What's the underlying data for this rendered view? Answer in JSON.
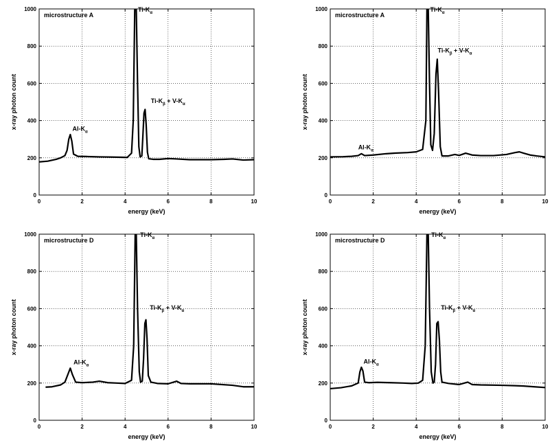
{
  "chart_data": [
    {
      "type": "line",
      "title": "microstructure A",
      "xlabel": "energy (keV)",
      "ylabel": "x-ray photon count",
      "xlim": [
        0,
        10
      ],
      "ylim": [
        0,
        1000
      ],
      "xticks": [
        "0",
        "2",
        "4",
        "6",
        "8",
        "10"
      ],
      "yticks": [
        "0",
        "200",
        "400",
        "600",
        "800",
        "1000"
      ],
      "grid": true,
      "series": [
        {
          "x": [
            0,
            0.4,
            0.8,
            1.0,
            1.2,
            1.3,
            1.38,
            1.45,
            1.52,
            1.6,
            1.8,
            2.2,
            2.8,
            3.4,
            3.8,
            4.1,
            4.3,
            4.38,
            4.45,
            4.52,
            4.58,
            4.64,
            4.7,
            4.78,
            4.82,
            4.88,
            4.93,
            4.98,
            5.04,
            5.1,
            5.3,
            5.6,
            6.0,
            6.4,
            7.0,
            8.0,
            8.6,
            9.0,
            9.5,
            10
          ],
          "values": [
            178,
            182,
            192,
            200,
            212,
            240,
            300,
            325,
            290,
            220,
            208,
            207,
            205,
            204,
            203,
            202,
            225,
            400,
            1000,
            1000,
            600,
            260,
            205,
            210,
            300,
            440,
            460,
            380,
            230,
            195,
            192,
            192,
            196,
            194,
            190,
            190,
            192,
            194,
            188,
            190
          ]
        }
      ],
      "annotations": [
        {
          "base": "Ti-K",
          "sub": "α",
          "rest": "",
          "sub2": "",
          "x": 4.6,
          "y": 985
        },
        {
          "base": "Ti-K",
          "sub": "β",
          "rest": " + V-K",
          "sub2": "α",
          "x": 5.2,
          "y": 495
        },
        {
          "base": "Al-K",
          "sub": "α",
          "rest": "",
          "sub2": "",
          "x": 1.55,
          "y": 345
        }
      ]
    },
    {
      "type": "line",
      "title": "microstructure A",
      "xlabel": "energy (keV)",
      "ylabel": "x-ray photon count",
      "xlim": [
        0,
        10
      ],
      "ylim": [
        0,
        1000
      ],
      "xticks": [
        "0",
        "2",
        "4",
        "6",
        "8",
        "10"
      ],
      "yticks": [
        "0",
        "200",
        "400",
        "600",
        "800",
        "1000"
      ],
      "grid": true,
      "series": [
        {
          "x": [
            0,
            0.6,
            1.0,
            1.3,
            1.45,
            1.6,
            2.0,
            2.6,
            3.0,
            3.6,
            4.0,
            4.3,
            4.45,
            4.5,
            4.56,
            4.62,
            4.68,
            4.76,
            4.84,
            4.92,
            4.98,
            5.04,
            5.12,
            5.2,
            5.5,
            5.8,
            6.0,
            6.3,
            6.6,
            7.0,
            7.6,
            8.2,
            8.6,
            8.8,
            9.0,
            9.3,
            9.6,
            10
          ],
          "values": [
            205,
            206,
            208,
            212,
            222,
            212,
            215,
            222,
            225,
            228,
            232,
            245,
            400,
            1000,
            1000,
            600,
            270,
            240,
            330,
            650,
            730,
            560,
            260,
            210,
            210,
            218,
            213,
            225,
            215,
            212,
            212,
            218,
            228,
            232,
            225,
            215,
            210,
            205
          ]
        }
      ],
      "annotations": [
        {
          "base": "Ti-K",
          "sub": "α",
          "rest": "",
          "sub2": "",
          "x": 4.65,
          "y": 985
        },
        {
          "base": "Ti-K",
          "sub": "β",
          "rest": " + V-K",
          "sub2": "α",
          "x": 5.0,
          "y": 765
        },
        {
          "base": "Al-K",
          "sub": "α",
          "rest": "",
          "sub2": "",
          "x": 1.3,
          "y": 245
        }
      ]
    },
    {
      "type": "line",
      "title": "microstructure D",
      "xlabel": "energy (keV)",
      "ylabel": "x-ray photon count",
      "xlim": [
        0,
        10
      ],
      "ylim": [
        0,
        1000
      ],
      "xticks": [
        "0",
        "2",
        "4",
        "6",
        "8",
        "10"
      ],
      "yticks": [
        "0",
        "200",
        "400",
        "600",
        "800",
        "1000"
      ],
      "grid": true,
      "series": [
        {
          "x": [
            0.3,
            0.6,
            1.0,
            1.2,
            1.35,
            1.45,
            1.55,
            1.7,
            2.0,
            2.5,
            2.8,
            3.2,
            3.6,
            4.0,
            4.3,
            4.4,
            4.47,
            4.52,
            4.58,
            4.66,
            4.72,
            4.8,
            4.86,
            4.92,
            4.97,
            5.02,
            5.08,
            5.2,
            5.5,
            6.0,
            6.4,
            6.6,
            7.0,
            8.0,
            9.0,
            9.5,
            10
          ],
          "values": [
            178,
            180,
            190,
            205,
            250,
            280,
            245,
            205,
            202,
            205,
            210,
            202,
            200,
            198,
            215,
            400,
            1000,
            1000,
            600,
            260,
            205,
            210,
            330,
            520,
            540,
            440,
            240,
            205,
            198,
            196,
            210,
            198,
            196,
            196,
            188,
            180,
            180
          ]
        }
      ],
      "annotations": [
        {
          "base": "Ti-K",
          "sub": "α",
          "rest": "",
          "sub2": "",
          "x": 4.7,
          "y": 985
        },
        {
          "base": "Ti-K",
          "sub": "β",
          "rest": " + V-K",
          "sub2": "α",
          "x": 5.15,
          "y": 595
        },
        {
          "base": "Al-K",
          "sub": "α",
          "rest": "",
          "sub2": "",
          "x": 1.6,
          "y": 300
        }
      ]
    },
    {
      "type": "line",
      "title": "microstructure D",
      "xlabel": "energy (keV)",
      "ylabel": "x-ray photon count",
      "xlim": [
        0,
        10
      ],
      "ylim": [
        0,
        1000
      ],
      "xticks": [
        "0",
        "2",
        "4",
        "6",
        "8",
        "10"
      ],
      "yticks": [
        "0",
        "200",
        "400",
        "600",
        "800",
        "1000"
      ],
      "grid": true,
      "series": [
        {
          "x": [
            0,
            0.5,
            1.0,
            1.3,
            1.38,
            1.45,
            1.52,
            1.6,
            1.8,
            2.2,
            2.8,
            3.4,
            3.8,
            4.1,
            4.3,
            4.42,
            4.5,
            4.56,
            4.62,
            4.7,
            4.78,
            4.84,
            4.9,
            4.96,
            5.02,
            5.08,
            5.14,
            5.2,
            5.5,
            6.0,
            6.4,
            6.6,
            7.0,
            8.0,
            8.6,
            9.0,
            9.5,
            10
          ],
          "values": [
            170,
            175,
            185,
            200,
            260,
            285,
            265,
            205,
            202,
            204,
            202,
            200,
            198,
            200,
            215,
            400,
            1000,
            1000,
            600,
            260,
            200,
            205,
            300,
            520,
            530,
            430,
            260,
            205,
            198,
            192,
            205,
            192,
            190,
            188,
            186,
            184,
            180,
            176
          ]
        }
      ],
      "annotations": [
        {
          "base": "Ti-K",
          "sub": "α",
          "rest": "",
          "sub2": "",
          "x": 4.7,
          "y": 985
        },
        {
          "base": "Ti-K",
          "sub": "β",
          "rest": " + V-K",
          "sub2": "α",
          "x": 5.15,
          "y": 595
        },
        {
          "base": "Al-K",
          "sub": "α",
          "rest": "",
          "sub2": "",
          "x": 1.55,
          "y": 305
        }
      ]
    }
  ]
}
